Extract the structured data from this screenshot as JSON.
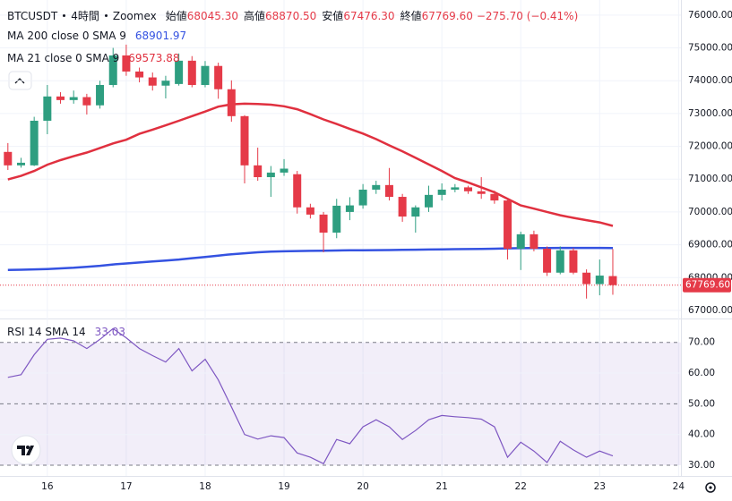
{
  "chart_data": [
    {
      "type": "candlestick",
      "symbol": "BTCUSDT",
      "interval": "4時間",
      "exchange": "Zoomex",
      "ohlc_labels": [
        {
          "label": "始値",
          "value": "68045.30"
        },
        {
          "label": "高値",
          "value": "68870.50"
        },
        {
          "label": "安値",
          "value": "67476.30"
        },
        {
          "label": "終値",
          "value": "67769.60"
        }
      ],
      "change": "−275.70 (−0.41%)",
      "price_label": "67769.60",
      "up_color": "#2e9e80",
      "down_color": "#e53a48",
      "grid": true,
      "x": [
        15.5,
        15.6667,
        15.8333,
        16,
        16.1667,
        16.3333,
        16.5,
        16.6667,
        16.8333,
        17,
        17.1667,
        17.3333,
        17.5,
        17.6667,
        17.8333,
        18,
        18.1667,
        18.3333,
        18.5,
        18.6667,
        18.8333,
        19,
        19.1667,
        19.3333,
        19.5,
        19.6667,
        19.8333,
        20,
        20.1667,
        20.3333,
        20.5,
        20.6667,
        20.8333,
        21,
        21.1667,
        21.3333,
        21.5,
        21.6667,
        21.8333,
        22,
        22.1667,
        22.3333,
        22.5,
        22.6667,
        22.8333,
        23,
        23.1667
      ],
      "open": [
        71830,
        71420,
        71420,
        72780,
        73520,
        73410,
        73500,
        73250,
        73870,
        74770,
        74280,
        74100,
        73850,
        73900,
        74610,
        73870,
        74450,
        73740,
        72920,
        71420,
        71060,
        71200,
        71150,
        70140,
        69920,
        69370,
        70000,
        70200,
        70680,
        70820,
        70460,
        69860,
        70140,
        70520,
        70680,
        70750,
        70630,
        70550,
        70350,
        68880,
        69320,
        68880,
        68150,
        68830,
        68150,
        67800,
        68045.3
      ],
      "high": [
        72100,
        71650,
        72900,
        73870,
        73650,
        73700,
        73600,
        74000,
        75000,
        75100,
        74400,
        74250,
        74150,
        74830,
        74750,
        74600,
        74550,
        74010,
        72950,
        71960,
        71400,
        71610,
        71250,
        70250,
        70000,
        70400,
        70450,
        70850,
        70950,
        71340,
        70550,
        70200,
        70800,
        70870,
        70850,
        70800,
        71060,
        70650,
        70400,
        69400,
        69430,
        68950,
        68950,
        68900,
        68250,
        68550,
        68870.5
      ],
      "low": [
        71280,
        71350,
        71400,
        72370,
        73300,
        73300,
        72970,
        73150,
        73800,
        74150,
        73950,
        73700,
        73460,
        73850,
        73800,
        73800,
        73450,
        72750,
        70870,
        70950,
        70460,
        71100,
        69950,
        69800,
        68770,
        69200,
        69750,
        70100,
        70550,
        70350,
        69700,
        69370,
        70000,
        70350,
        70600,
        70550,
        70400,
        70250,
        68550,
        68230,
        68800,
        68050,
        68100,
        68100,
        67360,
        67460,
        67476.3
      ],
      "close": [
        71420,
        71500,
        72780,
        73520,
        73410,
        73500,
        73250,
        73870,
        74770,
        74280,
        74100,
        73850,
        74000,
        74610,
        73870,
        74450,
        73740,
        72920,
        71420,
        71060,
        71200,
        71320,
        70140,
        69920,
        69370,
        70190,
        70200,
        70680,
        70820,
        70460,
        69860,
        70140,
        70520,
        70680,
        70750,
        70630,
        70550,
        70350,
        68880,
        69320,
        68880,
        68150,
        68830,
        68150,
        67800,
        68060,
        67769.6
      ],
      "series": [
        {
          "name": "MA 200 close 0 SMA 9",
          "color": "#3452e1",
          "values": [
            68230,
            68240,
            68250,
            68260,
            68280,
            68300,
            68330,
            68360,
            68400,
            68430,
            68460,
            68490,
            68520,
            68550,
            68590,
            68630,
            68670,
            68710,
            68740,
            68770,
            68790,
            68800,
            68810,
            68815,
            68820,
            68825,
            68830,
            68830,
            68835,
            68840,
            68845,
            68850,
            68855,
            68860,
            68865,
            68870,
            68875,
            68880,
            68890,
            68895,
            68900,
            68900,
            68905,
            68905,
            68905,
            68905,
            68901.97
          ]
        },
        {
          "name": "MA 21 close 0 SMA 9",
          "color": "#e0303f",
          "values": [
            70990,
            71100,
            71250,
            71440,
            71580,
            71700,
            71810,
            71950,
            72090,
            72200,
            72380,
            72510,
            72640,
            72780,
            72920,
            73060,
            73210,
            73280,
            73300,
            73290,
            73270,
            73220,
            73130,
            72980,
            72820,
            72680,
            72530,
            72390,
            72220,
            72030,
            71850,
            71650,
            71450,
            71250,
            71030,
            70900,
            70750,
            70600,
            70400,
            70200,
            70100,
            70000,
            69900,
            69820,
            69750,
            69680,
            69573.88
          ]
        }
      ],
      "xlim": [
        15.4,
        24.03
      ],
      "xticks": [
        16,
        17,
        18,
        19,
        20,
        21,
        22,
        23,
        24
      ],
      "ylim": [
        66780,
        76460
      ],
      "yticks": [
        {
          "value": 67000,
          "label": "67000.00"
        },
        {
          "value": 68000,
          "label": "68000.00"
        },
        {
          "value": 69000,
          "label": "69000.00"
        },
        {
          "value": 70000,
          "label": "70000.00"
        },
        {
          "value": 71000,
          "label": "71000.00"
        },
        {
          "value": 72000,
          "label": "72000.00"
        },
        {
          "value": 73000,
          "label": "73000.00"
        },
        {
          "value": 74000,
          "label": "74000.00"
        },
        {
          "value": 75000,
          "label": "75000.00"
        },
        {
          "value": 76000,
          "label": "76000.00"
        }
      ]
    },
    {
      "type": "line",
      "series": [
        {
          "name": "RSI 14 SMA 14",
          "color": "#7e57c2",
          "values": [
            58.6,
            59.5,
            66,
            71,
            71.4,
            70.5,
            68,
            71,
            74.5,
            71.5,
            68,
            65.7,
            63.6,
            68,
            60.7,
            64.5,
            57.8,
            49,
            40,
            38.5,
            39.6,
            39,
            34,
            32.6,
            30.5,
            38.4,
            37,
            42.5,
            44.8,
            42.5,
            38.4,
            41.3,
            44.8,
            46.2,
            45.8,
            45.5,
            45,
            42.5,
            32.6,
            37.5,
            34.6,
            30.9,
            37.8,
            35,
            32.6,
            34.6,
            33.03
          ]
        }
      ],
      "x": [
        15.5,
        15.6667,
        15.8333,
        16,
        16.1667,
        16.3333,
        16.5,
        16.6667,
        16.8333,
        17,
        17.1667,
        17.3333,
        17.5,
        17.6667,
        17.8333,
        18,
        18.1667,
        18.3333,
        18.5,
        18.6667,
        18.8333,
        19,
        19.1667,
        19.3333,
        19.5,
        19.6667,
        19.8333,
        20,
        20.1667,
        20.3333,
        20.5,
        20.6667,
        20.8333,
        21,
        21.1667,
        21.3333,
        21.5,
        21.6667,
        21.8333,
        22,
        22.1667,
        22.3333,
        22.5,
        22.6667,
        22.8333,
        23,
        23.1667
      ],
      "xlim": [
        15.4,
        24.03
      ],
      "ylim": [
        26.8,
        77.2
      ],
      "yticks": [
        {
          "value": 30,
          "label": "30.00"
        },
        {
          "value": 40,
          "label": "40.00"
        },
        {
          "value": 50,
          "label": "50.00"
        },
        {
          "value": 60,
          "label": "60.00"
        },
        {
          "value": 70,
          "label": "70.00"
        }
      ]
    }
  ]
}
